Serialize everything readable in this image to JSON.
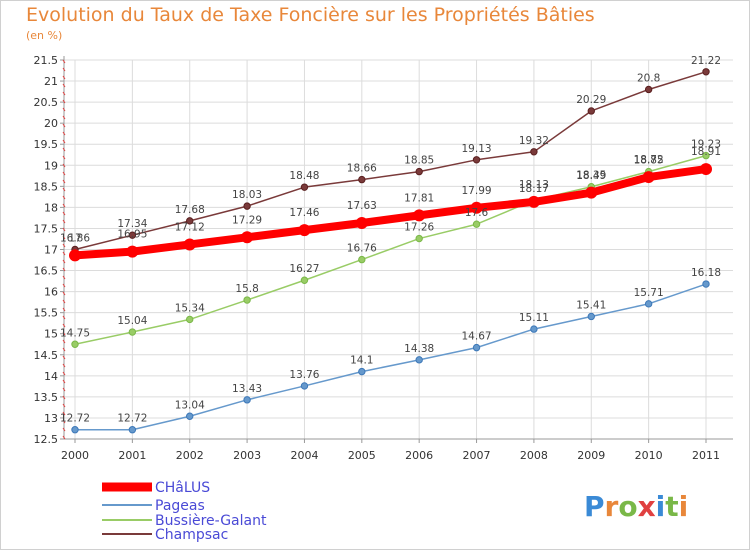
{
  "chart_data": {
    "type": "line",
    "title": "Evolution du Taux de Taxe Foncière sur les Propriétés Bâties",
    "unit_label": "(en %)",
    "x": [
      "2000",
      "2001",
      "2002",
      "2003",
      "2004",
      "2005",
      "2006",
      "2007",
      "2008",
      "2009",
      "2010",
      "2011"
    ],
    "ylim": [
      12.5,
      21.5
    ],
    "yticks": [
      "12.5",
      "13",
      "13.5",
      "14",
      "14.5",
      "15",
      "15.5",
      "16",
      "16.5",
      "17",
      "17.5",
      "18",
      "18.5",
      "19",
      "19.5",
      "20",
      "20.5",
      "21",
      "21.5"
    ],
    "grid": true,
    "legend_position": "bottom-left",
    "series": [
      {
        "name": "CHâLUS",
        "color": "#ff0000",
        "values": [
          16.86,
          16.95,
          17.12,
          17.29,
          17.46,
          17.63,
          17.81,
          17.99,
          18.13,
          18.35,
          18.72,
          18.91
        ],
        "labels": [
          "16.86",
          "16.95",
          "17.12",
          "17.29",
          "17.46",
          "17.63",
          "17.81",
          "17.99",
          "18.13",
          "18.35",
          "18.72",
          "18.91"
        ]
      },
      {
        "name": "Pageas",
        "color": "#6699cc",
        "values": [
          12.72,
          12.72,
          13.04,
          13.43,
          13.76,
          14.1,
          14.38,
          14.67,
          15.11,
          15.41,
          15.71,
          16.18
        ],
        "labels": [
          "12.72",
          "12.72",
          "13.04",
          "13.43",
          "13.76",
          "14.1",
          "14.38",
          "14.67",
          "15.11",
          "15.41",
          "15.71",
          "16.18"
        ]
      },
      {
        "name": "Bussière-Galant",
        "color": "#99cc66",
        "values": [
          14.75,
          15.04,
          15.34,
          15.8,
          16.27,
          16.76,
          17.26,
          17.6,
          18.17,
          18.49,
          18.85,
          19.23
        ],
        "labels": [
          "14.75",
          "15.04",
          "15.34",
          "15.8",
          "16.27",
          "16.76",
          "17.26",
          "17.6",
          "18.17",
          "18.49",
          "18.85",
          "19.23"
        ]
      },
      {
        "name": "Champsac",
        "color": "#7a3a3a",
        "values": [
          17.0,
          17.34,
          17.68,
          18.03,
          18.48,
          18.66,
          18.85,
          19.13,
          19.32,
          20.29,
          20.8,
          21.22
        ],
        "labels": [
          "17",
          "17.34",
          "17.68",
          "18.03",
          "18.48",
          "18.66",
          "18.85",
          "19.13",
          "19.32",
          "20.29",
          "20.8",
          "21.22"
        ]
      }
    ]
  },
  "logo": {
    "text": "Proxiti"
  }
}
